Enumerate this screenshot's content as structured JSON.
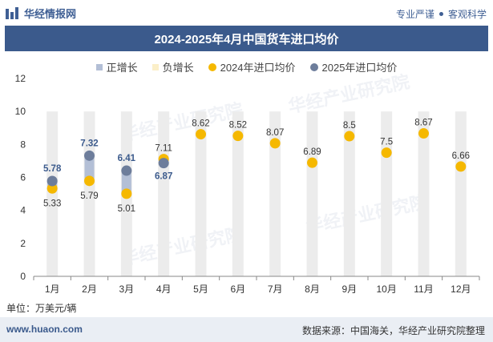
{
  "header": {
    "brand": "华经情报网",
    "slogan_left": "专业严谨",
    "slogan_right": "客观科学"
  },
  "title": "2024-2025年4月中国货车进口均价",
  "legend": {
    "pos": "正增长",
    "neg": "负增长",
    "s2024": "2024年进口均价",
    "s2025": "2025年进口均价"
  },
  "unit": "单位：万美元/辆",
  "footer": {
    "website": "www.huaon.com",
    "source": "数据来源：中国海关，华经产业研究院整理"
  },
  "watermark": "华经产业研究院",
  "colors": {
    "title_bg": "#3b5a8c",
    "bar_bg": "#ececec",
    "pos": "#b3bfd6",
    "neg": "#fbefc8",
    "s2024": "#f5b800",
    "s2025": "#6d7d9b"
  },
  "chart_data": {
    "type": "scatter",
    "title": "2024-2025年4月中国货车进口均价",
    "categories": [
      "1月",
      "2月",
      "3月",
      "4月",
      "5月",
      "6月",
      "7月",
      "8月",
      "9月",
      "10月",
      "11月",
      "12月"
    ],
    "ylim": [
      0,
      12
    ],
    "yticks": [
      0,
      2,
      4,
      6,
      8,
      10,
      12
    ],
    "grid": false,
    "legend_position": "top",
    "series": [
      {
        "name": "2024年进口均价",
        "values": [
          5.33,
          5.79,
          5.01,
          7.11,
          8.62,
          8.52,
          8.07,
          6.89,
          8.5,
          7.5,
          8.67,
          6.66
        ]
      },
      {
        "name": "2025年进口均价",
        "values": [
          5.78,
          7.32,
          6.41,
          6.87,
          null,
          null,
          null,
          null,
          null,
          null,
          null,
          null
        ]
      }
    ]
  }
}
